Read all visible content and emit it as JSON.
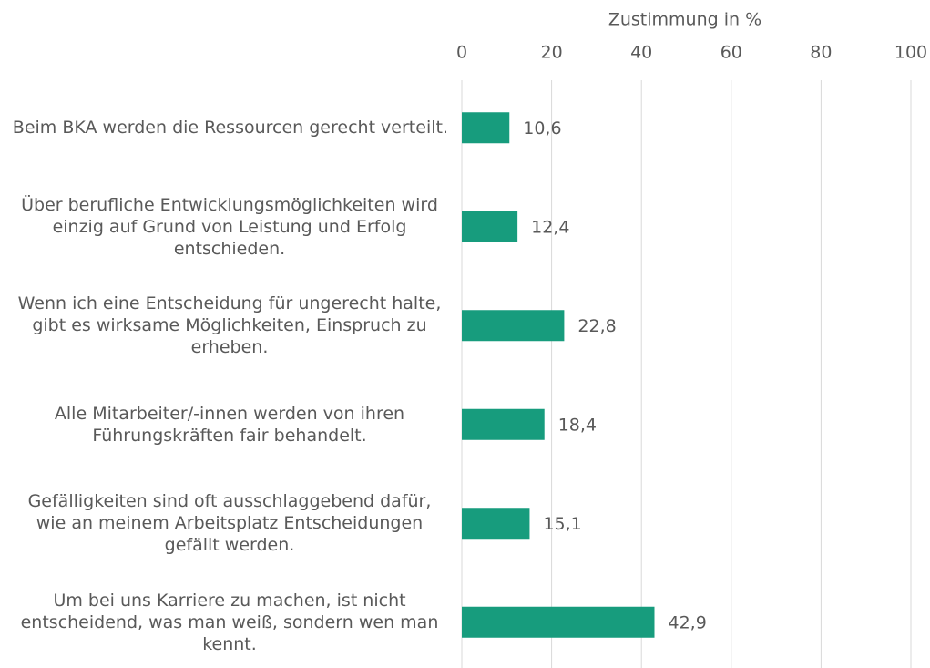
{
  "chart_data": {
    "type": "bar",
    "orientation": "horizontal",
    "x_label": "Zustimmung in %",
    "categories": [
      "Beim BKA werden die Ressourcen gerecht verteilt.",
      "Über berufliche Entwicklungsmöglichkeiten wird einzig auf Grund von Leistung und Erfolg entschieden.",
      "Wenn ich eine Entscheidung für ungerecht halte, gibt es wirksame Möglichkeiten, Einspruch zu erheben.",
      "Alle Mitarbeiter/-innen werden von ihren Führungskräften fair behandelt.",
      "Gefälligkeiten sind oft ausschlaggebend dafür, wie an meinem Arbeitsplatz Entscheidungen gefällt werden.",
      "Um bei uns Karriere zu machen, ist nicht entscheidend, was man weiß, sondern wen man kennt."
    ],
    "values": [
      10.6,
      12.4,
      22.8,
      18.4,
      15.1,
      42.9
    ],
    "value_labels": [
      "10,6",
      "12,4",
      "22,8",
      "18,4",
      "15,1",
      "42,9"
    ],
    "color": "#179c7d",
    "xlim": [
      0,
      100
    ],
    "xticks": [
      0,
      20,
      40,
      60,
      80,
      100
    ],
    "grid": true
  }
}
